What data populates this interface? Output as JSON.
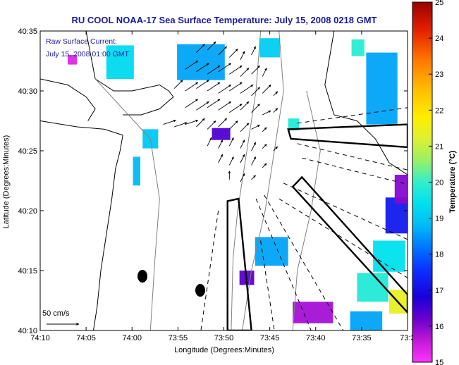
{
  "chart_data": {
    "type": "heatmap",
    "title": "RU COOL  NOAA-17  Sea Surface Temperature:  July 15, 2008 0218 GMT",
    "xlabel": "Longitude (Degrees:Minutes)",
    "ylabel": "Latitude (Degrees:Minutes)",
    "x_ticks": [
      "74:10",
      "74:05",
      "74:00",
      "73:55",
      "73:50",
      "73:45",
      "73:40",
      "73:35",
      "73:3"
    ],
    "y_ticks": [
      "40:10",
      "40:15",
      "40:20",
      "40:25",
      "40:30",
      "40:35"
    ],
    "x_range_minutes_west": [
      -610,
      -570
    ],
    "y_range_minutes_north": [
      2410,
      2435
    ],
    "annotation_lines": [
      "Raw Surface Current:",
      "July 15, 2008 01:00 GMT"
    ],
    "scale_arrow_label": "50 cm/s",
    "colorbar": {
      "label": "Temperature (°C)",
      "min": 15,
      "max": 25,
      "ticks": [
        "15",
        "16",
        "17",
        "18",
        "19",
        "20",
        "21",
        "22",
        "23",
        "24",
        "25"
      ]
    },
    "sst_patches": [
      {
        "lon": -601.3,
        "lat": 2432.4,
        "w": 3.0,
        "h": 2.8,
        "temp": 19.3
      },
      {
        "lon": -606.5,
        "lat": 2432.6,
        "w": 1.0,
        "h": 0.8,
        "temp": 15.3
      },
      {
        "lon": -598.0,
        "lat": 2426.0,
        "w": 1.7,
        "h": 1.6,
        "temp": 19.0
      },
      {
        "lon": -599.5,
        "lat": 2423.3,
        "w": 0.8,
        "h": 2.4,
        "temp": 18.8
      },
      {
        "lon": -592.5,
        "lat": 2432.4,
        "w": 5.2,
        "h": 3.0,
        "temp": 18.6
      },
      {
        "lon": -590.3,
        "lat": 2426.4,
        "w": 2.0,
        "h": 1.0,
        "temp": 16.4
      },
      {
        "lon": -585.0,
        "lat": 2433.6,
        "w": 2.2,
        "h": 1.6,
        "temp": 19.1
      },
      {
        "lon": -582.4,
        "lat": 2427.2,
        "w": 1.2,
        "h": 1.0,
        "temp": 19.8
      },
      {
        "lon": -584.8,
        "lat": 2416.6,
        "w": 3.6,
        "h": 2.4,
        "temp": 18.6
      },
      {
        "lon": -587.5,
        "lat": 2414.4,
        "w": 1.6,
        "h": 1.2,
        "temp": 16.3
      },
      {
        "lon": -580.3,
        "lat": 2411.5,
        "w": 4.4,
        "h": 1.8,
        "temp": 15.8
      },
      {
        "lon": -574.5,
        "lat": 2410.8,
        "w": 3.5,
        "h": 1.6,
        "temp": 18.6
      },
      {
        "lon": -573.8,
        "lat": 2413.6,
        "w": 3.4,
        "h": 2.4,
        "temp": 19.8
      },
      {
        "lon": -572.0,
        "lat": 2416.2,
        "w": 3.5,
        "h": 2.6,
        "temp": 19.4
      },
      {
        "lon": -571.0,
        "lat": 2419.6,
        "w": 2.8,
        "h": 3.0,
        "temp": 17.2
      },
      {
        "lon": -570.6,
        "lat": 2421.8,
        "w": 1.6,
        "h": 2.4,
        "temp": 16.0
      },
      {
        "lon": -572.8,
        "lat": 2430.2,
        "w": 3.4,
        "h": 6.0,
        "temp": 18.6
      },
      {
        "lon": -575.4,
        "lat": 2433.6,
        "w": 1.4,
        "h": 1.4,
        "temp": 19.9
      },
      {
        "lon": -570.8,
        "lat": 2412.4,
        "w": 2.4,
        "h": 2.0,
        "temp": 21.4
      }
    ],
    "current_vectors": [
      {
        "lon": -593.0,
        "lat": 2433.2,
        "u": 2,
        "v": 2
      },
      {
        "lon": -591.8,
        "lat": 2433.4,
        "u": 2,
        "v": 2
      },
      {
        "lon": -590.6,
        "lat": 2433.0,
        "u": 2,
        "v": 2
      },
      {
        "lon": -589.4,
        "lat": 2432.8,
        "u": 2,
        "v": 2
      },
      {
        "lon": -588.2,
        "lat": 2432.6,
        "u": 1,
        "v": 2
      },
      {
        "lon": -587.0,
        "lat": 2433.0,
        "u": 1,
        "v": 2
      },
      {
        "lon": -594.2,
        "lat": 2431.8,
        "u": 3,
        "v": 2
      },
      {
        "lon": -593.0,
        "lat": 2431.6,
        "u": 3,
        "v": 2
      },
      {
        "lon": -591.8,
        "lat": 2431.4,
        "u": 3,
        "v": 2
      },
      {
        "lon": -590.6,
        "lat": 2431.6,
        "u": 3,
        "v": 2
      },
      {
        "lon": -589.4,
        "lat": 2431.4,
        "u": 3,
        "v": 2
      },
      {
        "lon": -588.2,
        "lat": 2431.2,
        "u": 2,
        "v": 2
      },
      {
        "lon": -587.0,
        "lat": 2431.4,
        "u": 2,
        "v": 2
      },
      {
        "lon": -585.8,
        "lat": 2431.2,
        "u": 1,
        "v": 2
      },
      {
        "lon": -595.4,
        "lat": 2430.2,
        "u": 2,
        "v": 2
      },
      {
        "lon": -594.2,
        "lat": 2430.0,
        "u": 3,
        "v": 2
      },
      {
        "lon": -593.0,
        "lat": 2430.2,
        "u": 3,
        "v": 2
      },
      {
        "lon": -591.8,
        "lat": 2430.0,
        "u": 3,
        "v": 2
      },
      {
        "lon": -590.6,
        "lat": 2429.8,
        "u": 3,
        "v": 2
      },
      {
        "lon": -589.4,
        "lat": 2430.0,
        "u": 3,
        "v": 2
      },
      {
        "lon": -588.2,
        "lat": 2429.8,
        "u": 3,
        "v": 2
      },
      {
        "lon": -587.0,
        "lat": 2429.6,
        "u": 2,
        "v": 2
      },
      {
        "lon": -585.8,
        "lat": 2429.8,
        "u": 2,
        "v": 2
      },
      {
        "lon": -584.6,
        "lat": 2429.6,
        "u": 1,
        "v": 1
      },
      {
        "lon": -594.2,
        "lat": 2428.6,
        "u": 3,
        "v": 2
      },
      {
        "lon": -593.0,
        "lat": 2428.4,
        "u": 3,
        "v": 2
      },
      {
        "lon": -591.8,
        "lat": 2428.6,
        "u": 3,
        "v": 2
      },
      {
        "lon": -590.6,
        "lat": 2428.4,
        "u": 3,
        "v": 2
      },
      {
        "lon": -589.4,
        "lat": 2428.2,
        "u": 3,
        "v": 2
      },
      {
        "lon": -588.2,
        "lat": 2428.4,
        "u": 2,
        "v": 2
      },
      {
        "lon": -587.0,
        "lat": 2428.2,
        "u": 2,
        "v": 2
      },
      {
        "lon": -585.8,
        "lat": 2428.0,
        "u": 2,
        "v": 1
      },
      {
        "lon": -584.6,
        "lat": 2428.2,
        "u": 1,
        "v": 1
      },
      {
        "lon": -596.6,
        "lat": 2427.2,
        "u": 3,
        "v": 1
      },
      {
        "lon": -595.4,
        "lat": 2427.0,
        "u": 3,
        "v": 1
      },
      {
        "lon": -594.2,
        "lat": 2427.2,
        "u": 3,
        "v": 1
      },
      {
        "lon": -593.0,
        "lat": 2427.0,
        "u": 2,
        "v": 2
      },
      {
        "lon": -591.8,
        "lat": 2426.8,
        "u": 2,
        "v": 2
      },
      {
        "lon": -590.6,
        "lat": 2427.0,
        "u": 2,
        "v": 2
      },
      {
        "lon": -589.4,
        "lat": 2426.8,
        "u": 2,
        "v": 2
      },
      {
        "lon": -588.2,
        "lat": 2426.6,
        "u": 2,
        "v": 2
      },
      {
        "lon": -587.0,
        "lat": 2426.8,
        "u": 2,
        "v": 1
      },
      {
        "lon": -585.8,
        "lat": 2426.6,
        "u": 1,
        "v": 1
      },
      {
        "lon": -591.8,
        "lat": 2425.4,
        "u": 1,
        "v": 2
      },
      {
        "lon": -590.6,
        "lat": 2425.2,
        "u": 1,
        "v": 2
      },
      {
        "lon": -589.4,
        "lat": 2425.4,
        "u": 1,
        "v": 2
      },
      {
        "lon": -588.2,
        "lat": 2425.2,
        "u": 1,
        "v": 2
      },
      {
        "lon": -587.0,
        "lat": 2425.0,
        "u": 1,
        "v": 2
      },
      {
        "lon": -585.8,
        "lat": 2425.2,
        "u": 1,
        "v": 1
      },
      {
        "lon": -584.6,
        "lat": 2425.0,
        "u": 1,
        "v": 1
      },
      {
        "lon": -590.6,
        "lat": 2424.0,
        "u": 1,
        "v": 2
      },
      {
        "lon": -589.4,
        "lat": 2423.8,
        "u": 1,
        "v": 2
      },
      {
        "lon": -588.2,
        "lat": 2424.0,
        "u": 1,
        "v": 2
      },
      {
        "lon": -587.0,
        "lat": 2423.8,
        "u": 1,
        "v": 2
      },
      {
        "lon": -585.8,
        "lat": 2423.6,
        "u": 1,
        "v": 1
      },
      {
        "lon": -589.4,
        "lat": 2422.6,
        "u": 0,
        "v": 2
      },
      {
        "lon": -588.2,
        "lat": 2422.4,
        "u": 1,
        "v": 2
      },
      {
        "lon": -587.0,
        "lat": 2422.6,
        "u": 1,
        "v": 1
      }
    ],
    "shapes": {
      "long_island_shore": [
        [
          -605,
          2435
        ],
        [
          -604.5,
          2433
        ],
        [
          -604,
          2431
        ],
        [
          -602,
          2430
        ],
        [
          -600,
          2430
        ],
        [
          -597,
          2430.5
        ],
        [
          -596,
          2430
        ],
        [
          -595.5,
          2429.5
        ],
        [
          -597,
          2428.5
        ],
        [
          -599,
          2428
        ],
        [
          -601,
          2428
        ]
      ],
      "nj_coast": [
        [
          -610,
          2427.5
        ],
        [
          -606,
          2427
        ],
        [
          -603,
          2426.8
        ],
        [
          -601,
          2426.3
        ],
        [
          -601.3,
          2425
        ],
        [
          -601.8,
          2423.5
        ],
        [
          -602.2,
          2421
        ],
        [
          -602.8,
          2418
        ],
        [
          -603.4,
          2415
        ],
        [
          -603.8,
          2412
        ],
        [
          -604.2,
          2410
        ]
      ],
      "ny_harbor_shore": [
        [
          -610,
          2431
        ],
        [
          -607,
          2430.5
        ],
        [
          -605,
          2429.5
        ],
        [
          -604,
          2428.5
        ],
        [
          -604.8,
          2427.5
        ]
      ],
      "channel_contour": [
        [
          -586,
          2435
        ],
        [
          -586.5,
          2430
        ],
        [
          -587.5,
          2425
        ],
        [
          -588.5,
          2420
        ],
        [
          -589,
          2416
        ],
        [
          -589.2,
          2410
        ]
      ],
      "isobath_20m": [
        [
          -604,
          2431
        ],
        [
          -601,
          2428.5
        ],
        [
          -598,
          2426
        ],
        [
          -597,
          2421
        ],
        [
          -597.5,
          2416
        ],
        [
          -598,
          2410
        ]
      ],
      "isobath_30m": [
        [
          -584,
          2435
        ],
        [
          -583.5,
          2430
        ],
        [
          -584.5,
          2425
        ],
        [
          -585.5,
          2420
        ],
        [
          -587,
          2415
        ],
        [
          -588,
          2410
        ]
      ],
      "isobath_40m": [
        [
          -581,
          2430
        ],
        [
          -579.5,
          2425
        ],
        [
          -580.5,
          2420
        ],
        [
          -582,
          2415
        ],
        [
          -582.5,
          2410
        ]
      ],
      "offshore_contour": [
        [
          -578,
          2435
        ],
        [
          -579,
          2430.5
        ],
        [
          -578,
          2428
        ],
        [
          -575.5,
          2427.5
        ],
        [
          -573.5,
          2426
        ],
        [
          -572,
          2424
        ],
        [
          -570,
          2423
        ]
      ],
      "shipping_lane_north": [
        [
          -583,
          2426.8
        ],
        [
          -570,
          2427.2
        ],
        [
          -570,
          2425.3
        ],
        [
          -582.7,
          2426.0
        ]
      ],
      "shipping_lane_diag": [
        [
          -581.5,
          2422.8
        ],
        [
          -570,
          2413.0
        ],
        [
          -570,
          2411.5
        ],
        [
          -582.5,
          2422.0
        ]
      ],
      "shipping_lane_south": [
        [
          -589.6,
          2420.8
        ],
        [
          -588.4,
          2421.0
        ],
        [
          -587.0,
          2410.0
        ],
        [
          -589.6,
          2410.0
        ]
      ],
      "dashed_rays": [
        [
          [
            -582,
            2427.3
          ],
          [
            -570,
            2428.6
          ]
        ],
        [
          [
            -582,
            2425.6
          ],
          [
            -570,
            2423.4
          ]
        ],
        [
          [
            -581.5,
            2424.4
          ],
          [
            -570,
            2422.2
          ]
        ],
        [
          [
            -583.5,
            2422.3
          ],
          [
            -570,
            2417.6
          ]
        ],
        [
          [
            -584.0,
            2421.0
          ],
          [
            -570,
            2414.4
          ]
        ],
        [
          [
            -585.6,
            2421.3
          ],
          [
            -577,
            2410.0
          ]
        ],
        [
          [
            -586.5,
            2421.0
          ],
          [
            -580.5,
            2410.0
          ]
        ],
        [
          [
            -590.6,
            2420.0
          ],
          [
            -592.5,
            2410.0
          ]
        ],
        [
          [
            -586.0,
            2417.5
          ],
          [
            -584.5,
            2410.0
          ]
        ]
      ]
    },
    "colors": {
      "title": "#1a1aa0",
      "annotation": "#1a1aa0",
      "land_outline": "#000000",
      "contours": "#808080"
    }
  }
}
